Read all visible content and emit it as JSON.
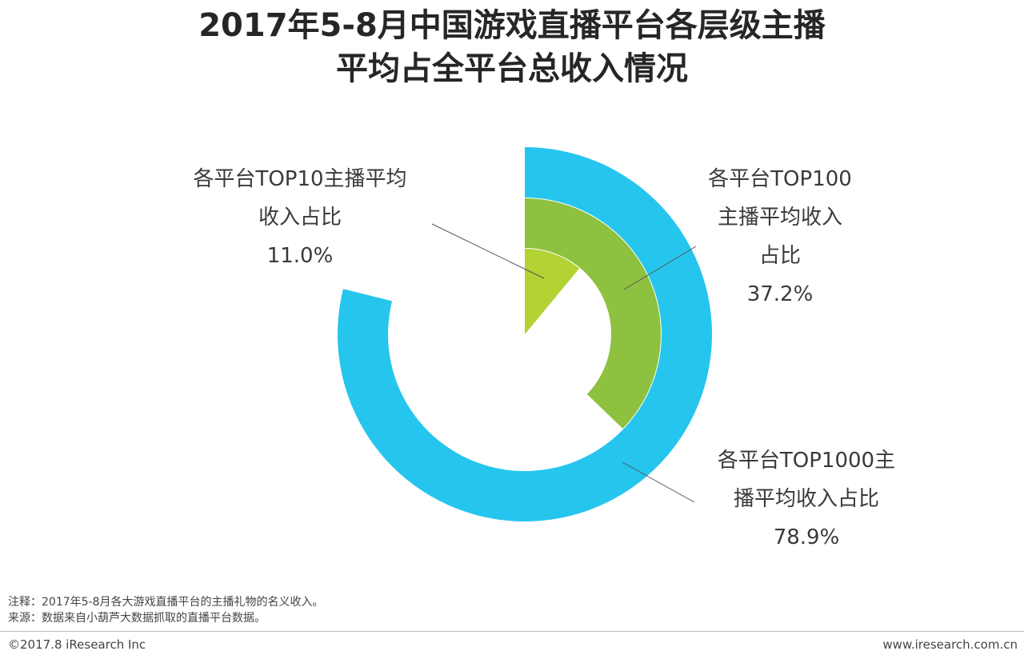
{
  "title": {
    "line1": "2017年5-8月中国游戏直播平台各层级主播",
    "line2": "平均占全平台总收入情况"
  },
  "chart_data": {
    "type": "radial-bar",
    "series": [
      {
        "label_lines": [
          "各平台TOP10主播平均",
          "收入占比",
          "11.0%"
        ],
        "value": 11.0,
        "color": "#b3d234"
      },
      {
        "label_lines": [
          "各平台TOP100",
          "主播平均收入",
          "占比",
          "37.2%"
        ],
        "value": 37.2,
        "color": "#8dc13f"
      },
      {
        "label_lines": [
          "各平台TOP1000主",
          "播平均收入占比",
          "78.9%"
        ],
        "value": 78.9,
        "color": "#25c5ee"
      }
    ]
  },
  "notes": {
    "note": "注释：2017年5-8月各大游戏直播平台的主播礼物的名义收入。",
    "source": "来源：数据来自小葫芦大数据抓取的直播平台数据。"
  },
  "footer": {
    "copyright": "©2017.8 iResearch Inc",
    "website": "www.iresearch.com.cn"
  }
}
